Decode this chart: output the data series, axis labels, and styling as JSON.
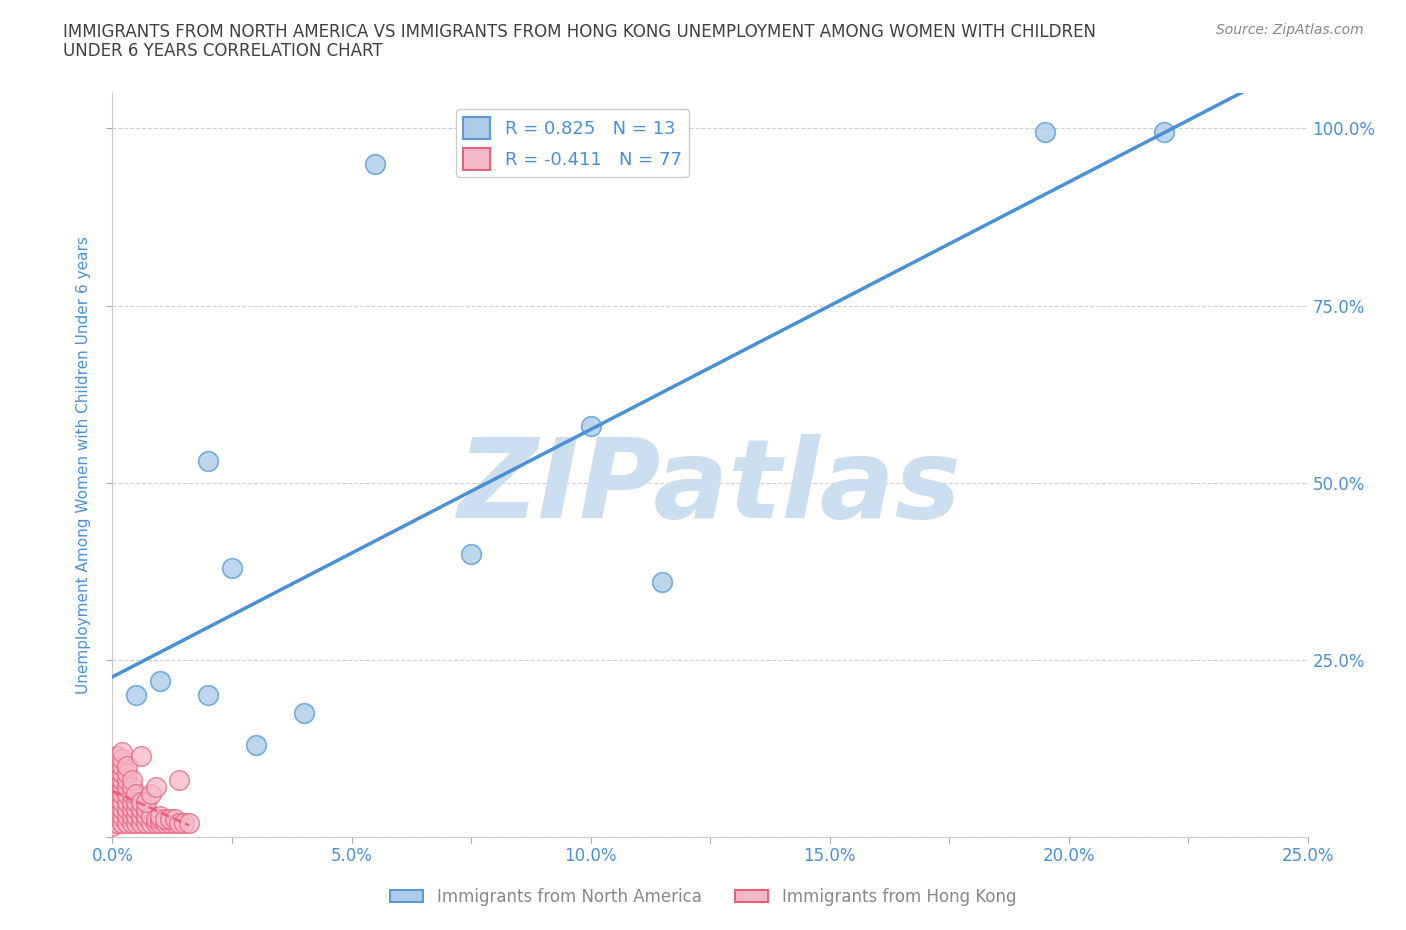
{
  "title_line1": "IMMIGRANTS FROM NORTH AMERICA VS IMMIGRANTS FROM HONG KONG UNEMPLOYMENT AMONG WOMEN WITH CHILDREN",
  "title_line2": "UNDER 6 YEARS CORRELATION CHART",
  "source_text": "Source: ZipAtlas.com",
  "ylabel": "Unemployment Among Women with Children Under 6 years",
  "x_tick_labels": [
    "0.0%",
    "",
    "5.0%",
    "",
    "10.0%",
    "",
    "15.0%",
    "",
    "20.0%",
    "",
    "25.0%"
  ],
  "y_tick_labels_right": [
    "100.0%",
    "75.0%",
    "50.0%",
    "25.0%"
  ],
  "xlim": [
    0,
    0.25
  ],
  "ylim": [
    0,
    1.05
  ],
  "blue_R": 0.825,
  "blue_N": 13,
  "pink_R": -0.411,
  "pink_N": 77,
  "legend_label_blue": "Immigrants from North America",
  "legend_label_pink": "Immigrants from Hong Kong",
  "blue_color": "#aecce8",
  "pink_color": "#f5b8c8",
  "blue_edge_color": "#5b9bd5",
  "pink_edge_color": "#e8607a",
  "blue_line_color": "#4a90d9",
  "pink_line_color": "#e8607a",
  "blue_scatter": [
    [
      0.005,
      0.2
    ],
    [
      0.01,
      0.22
    ],
    [
      0.02,
      0.53
    ],
    [
      0.02,
      0.2
    ],
    [
      0.025,
      0.38
    ],
    [
      0.03,
      0.13
    ],
    [
      0.04,
      0.175
    ],
    [
      0.055,
      0.95
    ],
    [
      0.075,
      0.4
    ],
    [
      0.1,
      0.58
    ],
    [
      0.115,
      0.36
    ],
    [
      0.195,
      0.995
    ],
    [
      0.22,
      0.995
    ]
  ],
  "pink_scatter": [
    [
      0.0,
      0.015
    ],
    [
      0.0,
      0.025
    ],
    [
      0.0,
      0.035
    ],
    [
      0.0,
      0.05
    ],
    [
      0.0,
      0.06
    ],
    [
      0.0,
      0.07
    ],
    [
      0.0,
      0.08
    ],
    [
      0.001,
      0.02
    ],
    [
      0.001,
      0.03
    ],
    [
      0.001,
      0.04
    ],
    [
      0.001,
      0.055
    ],
    [
      0.001,
      0.065
    ],
    [
      0.001,
      0.075
    ],
    [
      0.001,
      0.085
    ],
    [
      0.001,
      0.095
    ],
    [
      0.001,
      0.105
    ],
    [
      0.001,
      0.115
    ],
    [
      0.002,
      0.02
    ],
    [
      0.002,
      0.03
    ],
    [
      0.002,
      0.04
    ],
    [
      0.002,
      0.05
    ],
    [
      0.002,
      0.06
    ],
    [
      0.002,
      0.07
    ],
    [
      0.002,
      0.08
    ],
    [
      0.002,
      0.09
    ],
    [
      0.002,
      0.1
    ],
    [
      0.002,
      0.11
    ],
    [
      0.002,
      0.12
    ],
    [
      0.003,
      0.02
    ],
    [
      0.003,
      0.03
    ],
    [
      0.003,
      0.04
    ],
    [
      0.003,
      0.05
    ],
    [
      0.003,
      0.06
    ],
    [
      0.003,
      0.07
    ],
    [
      0.003,
      0.08
    ],
    [
      0.003,
      0.09
    ],
    [
      0.003,
      0.1
    ],
    [
      0.004,
      0.02
    ],
    [
      0.004,
      0.03
    ],
    [
      0.004,
      0.04
    ],
    [
      0.004,
      0.05
    ],
    [
      0.004,
      0.06
    ],
    [
      0.004,
      0.07
    ],
    [
      0.004,
      0.08
    ],
    [
      0.005,
      0.02
    ],
    [
      0.005,
      0.03
    ],
    [
      0.005,
      0.04
    ],
    [
      0.005,
      0.05
    ],
    [
      0.005,
      0.06
    ],
    [
      0.006,
      0.02
    ],
    [
      0.006,
      0.03
    ],
    [
      0.006,
      0.04
    ],
    [
      0.006,
      0.05
    ],
    [
      0.007,
      0.02
    ],
    [
      0.007,
      0.03
    ],
    [
      0.007,
      0.04
    ],
    [
      0.008,
      0.02
    ],
    [
      0.008,
      0.03
    ],
    [
      0.009,
      0.02
    ],
    [
      0.009,
      0.025
    ],
    [
      0.01,
      0.02
    ],
    [
      0.01,
      0.025
    ],
    [
      0.011,
      0.02
    ],
    [
      0.012,
      0.02
    ],
    [
      0.013,
      0.02
    ],
    [
      0.014,
      0.08
    ],
    [
      0.006,
      0.115
    ],
    [
      0.007,
      0.05
    ],
    [
      0.008,
      0.06
    ],
    [
      0.009,
      0.07
    ],
    [
      0.01,
      0.03
    ],
    [
      0.011,
      0.025
    ],
    [
      0.012,
      0.025
    ],
    [
      0.013,
      0.025
    ],
    [
      0.014,
      0.02
    ],
    [
      0.015,
      0.02
    ],
    [
      0.016,
      0.02
    ]
  ],
  "watermark_text": "ZIPatlas",
  "watermark_color": "#ccdff0",
  "background_color": "#ffffff",
  "grid_color": "#d0d0d0",
  "title_color": "#404040",
  "axis_label_color": "#4a90d9",
  "tick_label_color": "#4a90d9"
}
